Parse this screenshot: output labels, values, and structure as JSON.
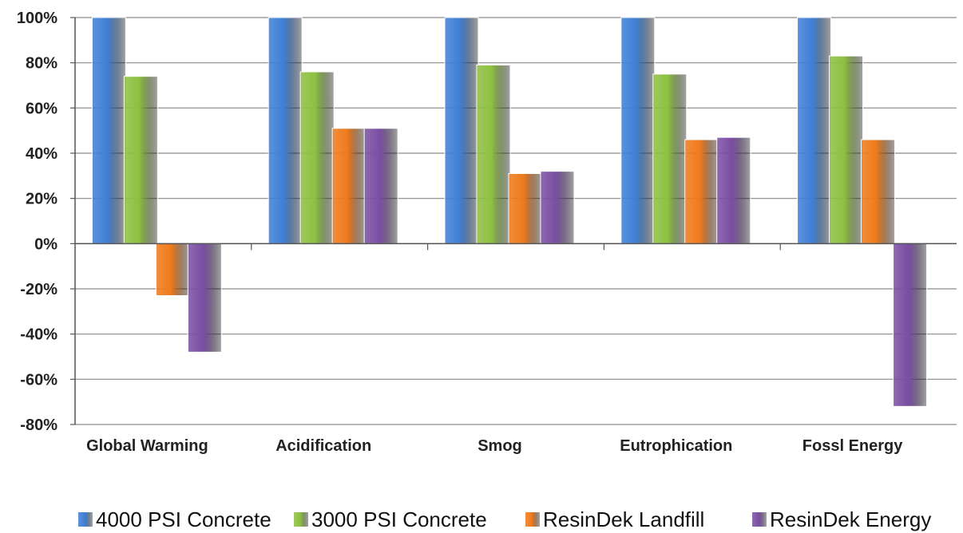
{
  "chart_data": {
    "type": "bar",
    "title": "",
    "xlabel": "",
    "ylabel": "",
    "categories": [
      "Global Warming",
      "Acidification",
      "Smog",
      "Eutrophication",
      "Fossl Energy"
    ],
    "series": [
      {
        "name": "4000 PSI Concrete",
        "color": "#3f7fd6",
        "values": [
          100,
          100,
          100,
          100,
          100
        ]
      },
      {
        "name": "3000 PSI Concrete",
        "color": "#8dc040",
        "values": [
          74,
          76,
          79,
          75,
          83
        ]
      },
      {
        "name": "ResinDek Landfill",
        "color": "#ef7a1a",
        "values": [
          -23,
          51,
          31,
          46,
          46
        ]
      },
      {
        "name": "ResinDek Energy",
        "color": "#7a4ea3",
        "values": [
          -48,
          51,
          32,
          47,
          -72
        ]
      }
    ],
    "ylim": [
      -80,
      100
    ],
    "yticks": [
      "100%",
      "80%",
      "60%",
      "40%",
      "20%",
      "0%",
      "-20%",
      "-40%",
      "-60%",
      "-80%"
    ],
    "grid": true,
    "legend_position": "bottom"
  }
}
